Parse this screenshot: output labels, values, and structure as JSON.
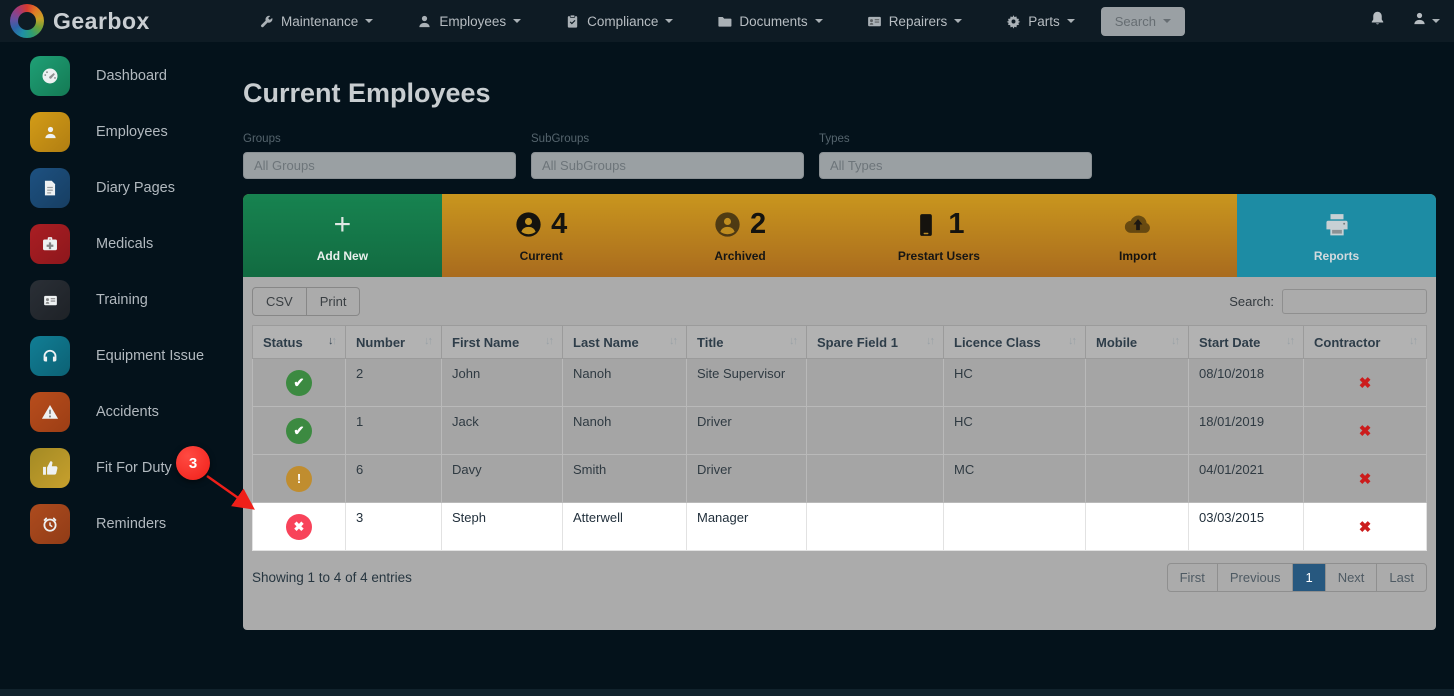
{
  "brand": {
    "name": "Gearbox"
  },
  "navbar": {
    "items": [
      {
        "label": "Maintenance",
        "icon": "wrench"
      },
      {
        "label": "Employees",
        "icon": "user"
      },
      {
        "label": "Compliance",
        "icon": "clipboard"
      },
      {
        "label": "Documents",
        "icon": "folder"
      },
      {
        "label": "Repairers",
        "icon": "id-card"
      },
      {
        "label": "Parts",
        "icon": "gear"
      }
    ],
    "search_label": "Search"
  },
  "sidebar": {
    "items": [
      {
        "label": "Dashboard",
        "icon": "gauge",
        "colors": [
          "#1fa076",
          "#147a54"
        ]
      },
      {
        "label": "Employees",
        "icon": "user",
        "colors": [
          "#d39c17",
          "#b17e12"
        ]
      },
      {
        "label": "Diary Pages",
        "icon": "file",
        "colors": [
          "#1d5181",
          "#173e62"
        ]
      },
      {
        "label": "Medicals",
        "icon": "medkit",
        "colors": [
          "#aa1e23",
          "#8d171c"
        ]
      },
      {
        "label": "Training",
        "icon": "id-card",
        "colors": [
          "#2a2f36",
          "#1e2227"
        ]
      },
      {
        "label": "Equipment Issue",
        "icon": "headphones",
        "colors": [
          "#117e95",
          "#0c6174"
        ]
      },
      {
        "label": "Accidents",
        "icon": "warning",
        "colors": [
          "#b84d1c",
          "#9c3e15"
        ]
      },
      {
        "label": "Fit For Duty",
        "icon": "thumbs-up",
        "colors": [
          "#a38a24",
          "#c7a02d"
        ]
      },
      {
        "label": "Reminders",
        "icon": "alarm",
        "colors": [
          "#ad4b1e",
          "#913c17"
        ]
      }
    ]
  },
  "page": {
    "title": "Current Employees"
  },
  "filters": [
    {
      "label": "Groups",
      "value": "All Groups"
    },
    {
      "label": "SubGroups",
      "value": "All SubGroups"
    },
    {
      "label": "Types",
      "value": "All Types"
    }
  ],
  "action_bar": {
    "add_new": {
      "label": "Add New"
    },
    "stats": [
      {
        "label": "Current",
        "count": "4",
        "icon": "user-circle",
        "muted": false
      },
      {
        "label": "Archived",
        "count": "2",
        "icon": "user-circle",
        "muted": true
      },
      {
        "label": "Prestart Users",
        "count": "1",
        "icon": "phone",
        "muted": false
      }
    ],
    "import": {
      "label": "Import",
      "icon": "cloud-upload"
    },
    "reports": {
      "label": "Reports",
      "icon": "printer"
    }
  },
  "table": {
    "toolbar": {
      "csv_label": "CSV",
      "print_label": "Print",
      "search_label": "Search:",
      "search_value": ""
    },
    "columns": [
      {
        "label": "Status",
        "sorted": true
      },
      {
        "label": "Number",
        "sorted": false
      },
      {
        "label": "First Name",
        "sorted": false
      },
      {
        "label": "Last Name",
        "sorted": false
      },
      {
        "label": "Title",
        "sorted": false
      },
      {
        "label": "Spare Field 1",
        "sorted": false
      },
      {
        "label": "Licence Class",
        "sorted": false
      },
      {
        "label": "Mobile",
        "sorted": false
      },
      {
        "label": "Start Date",
        "sorted": false
      },
      {
        "label": "Contractor",
        "sorted": false
      }
    ],
    "rows": [
      {
        "status": "active",
        "number": "2",
        "first_name": "John",
        "last_name": "Nanoh",
        "title": "Site Supervisor",
        "spare_field_1": "",
        "licence_class": "HC",
        "mobile": "",
        "start_date": "08/10/2018",
        "contractor": false,
        "highlighted": false
      },
      {
        "status": "active",
        "number": "1",
        "first_name": "Jack",
        "last_name": "Nanoh",
        "title": "Driver",
        "spare_field_1": "",
        "licence_class": "HC",
        "mobile": "",
        "start_date": "18/01/2019",
        "contractor": false,
        "highlighted": false
      },
      {
        "status": "warning",
        "number": "6",
        "first_name": "Davy",
        "last_name": "Smith",
        "title": "Driver",
        "spare_field_1": "",
        "licence_class": "MC",
        "mobile": "",
        "start_date": "04/01/2021",
        "contractor": false,
        "highlighted": false
      },
      {
        "status": "inactive",
        "number": "3",
        "first_name": "Steph",
        "last_name": "Atterwell",
        "title": "Manager",
        "spare_field_1": "",
        "licence_class": "",
        "mobile": "",
        "start_date": "03/03/2015",
        "contractor": false,
        "highlighted": true
      }
    ],
    "summary": "Showing 1 to 4 of 4 entries",
    "pagination": [
      {
        "label": "First",
        "active": false
      },
      {
        "label": "Previous",
        "active": false
      },
      {
        "label": "1",
        "active": true
      },
      {
        "label": "Next",
        "active": false
      },
      {
        "label": "Last",
        "active": false
      }
    ]
  },
  "annotation": {
    "step": "3"
  },
  "colors": {
    "add_new_green": "#157a47",
    "action_gold_top": "#c9961e",
    "action_gold_bottom": "#a96b1e",
    "reports_teal": "#1d8ca4",
    "status_active": "#3c8a41",
    "status_warning": "#c08d2f",
    "status_inactive": "#f8435a",
    "contractor_cross": "#cc1c1c",
    "annotation_red": "#f01f19",
    "pagination_active": "#27587f"
  }
}
